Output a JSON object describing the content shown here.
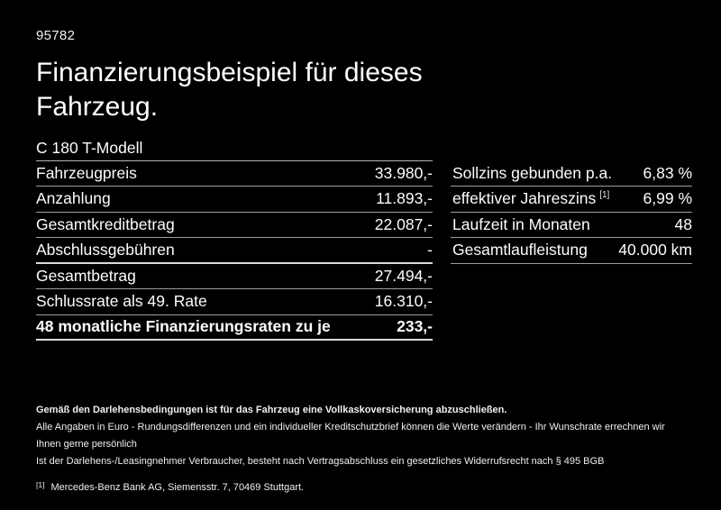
{
  "page": {
    "doc_number": "95782",
    "title": "Finanzierungsbeispiel für dieses Fahrzeug.",
    "model": "C 180 T-Modell"
  },
  "left_table": {
    "rows": [
      {
        "label": "Fahrzeugpreis",
        "value": "33.980,-"
      },
      {
        "label": "Anzahlung",
        "value": "11.893,-"
      },
      {
        "label": "Gesamtkreditbetrag",
        "value": "22.087,-"
      },
      {
        "label": "Abschlussgebühren",
        "value": "-"
      },
      {
        "label": "Gesamtbetrag",
        "value": "27.494,-"
      },
      {
        "label": "Schlussrate als 49. Rate",
        "value": "16.310,-"
      },
      {
        "label": "48 monatliche Finanzierungsraten zu je",
        "value": "233,-"
      }
    ]
  },
  "right_table": {
    "rows": [
      {
        "label": "Sollzins gebunden p.a.",
        "value": "6,83 %"
      },
      {
        "label": "effektiver Jahreszins",
        "footnote": "[1]",
        "value": "6,99 %"
      },
      {
        "label": "Laufzeit in Monaten",
        "value": "48"
      },
      {
        "label": "Gesamtlaufleistung",
        "value": "40.000 km"
      }
    ]
  },
  "footer": {
    "line1": "Gemäß den Darlehensbedingungen ist für das Fahrzeug eine Vollkaskoversicherung abzuschließen.",
    "line2": "Alle Angaben in Euro - Rundungsdifferenzen und ein individueller Kreditschutzbrief können die Werte verändern - Ihr Wunschrate errechnen wir Ihnen gerne persönlich",
    "line3": "Ist der Darlehens-/Leasingnehmer Verbraucher, besteht nach Vertragsabschluss ein gesetzliches Widerrufsrecht nach § 495 BGB",
    "footnote_marker": "[1]",
    "footnote_text": "Mercedes-Benz Bank AG, Siemensstr. 7, 70469 Stuttgart."
  },
  "colors": {
    "background": "#000000",
    "text": "#ffffff",
    "separator": "#9e9e9e"
  }
}
